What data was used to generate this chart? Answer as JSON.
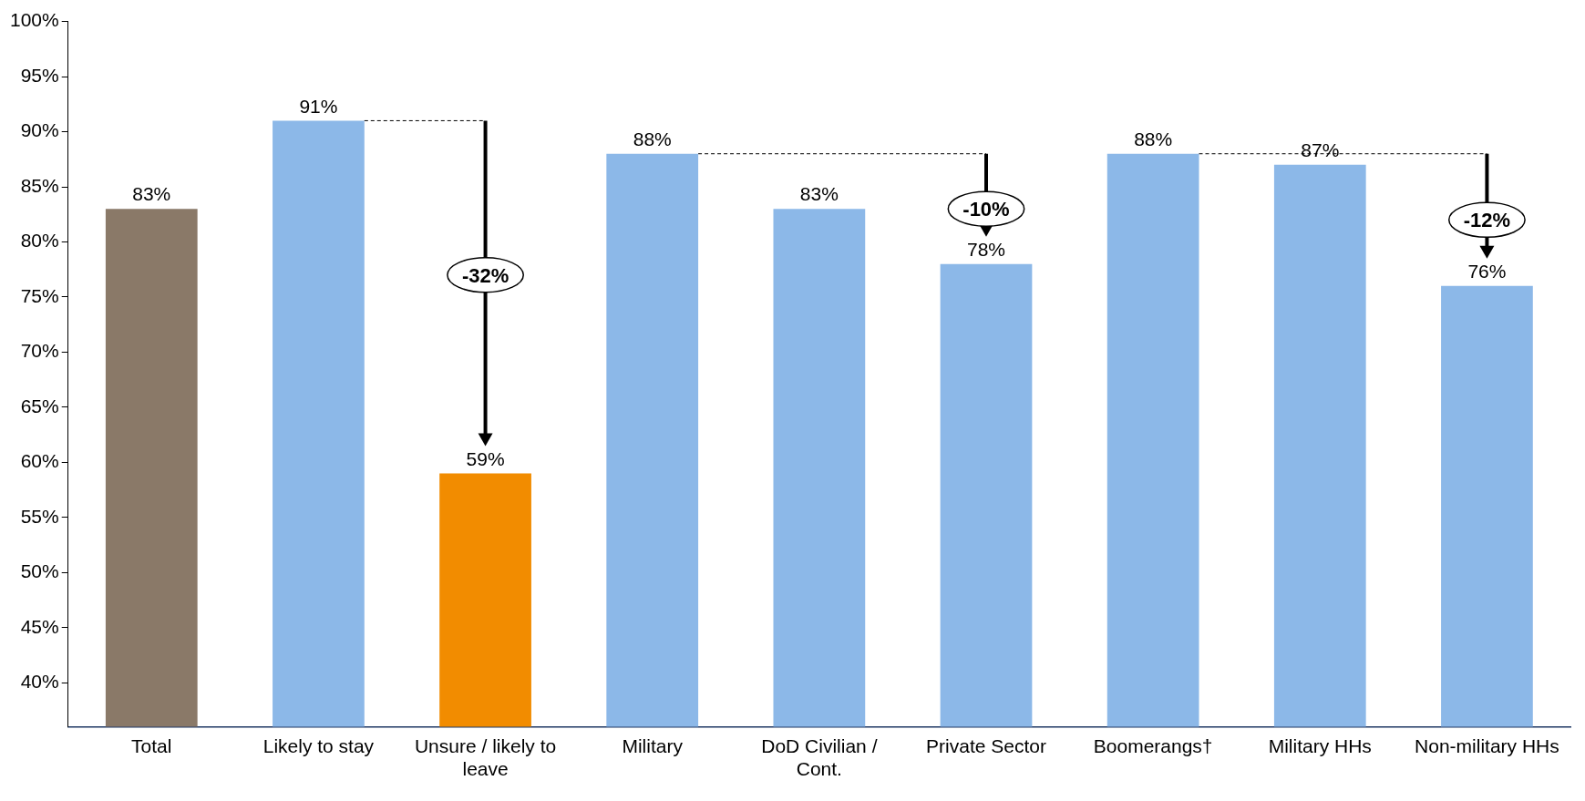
{
  "chart_data": {
    "type": "bar",
    "categories": [
      "Total",
      "Likely to stay",
      "Unsure / likely to leave",
      "Military",
      "DoD Civilian / Cont.",
      "Private Sector",
      "Boomerangs†",
      "Military HHs",
      "Non-military HHs"
    ],
    "values": [
      83,
      91,
      59,
      88,
      83,
      78,
      88,
      87,
      76
    ],
    "colors": [
      "#8a7968",
      "#8cb8e8",
      "#f28c00",
      "#8cb8e8",
      "#8cb8e8",
      "#8cb8e8",
      "#8cb8e8",
      "#8cb8e8",
      "#8cb8e8"
    ],
    "value_labels": [
      "83%",
      "91%",
      "59%",
      "88%",
      "83%",
      "78%",
      "88%",
      "87%",
      "76%"
    ],
    "ylim": [
      36,
      100
    ],
    "yticks": [
      {
        "value": 40,
        "label": "40%"
      },
      {
        "value": 45,
        "label": "45%"
      },
      {
        "value": 50,
        "label": "50%"
      },
      {
        "value": 55,
        "label": "55%"
      },
      {
        "value": 60,
        "label": "60%"
      },
      {
        "value": 65,
        "label": "65%"
      },
      {
        "value": 70,
        "label": "70%"
      },
      {
        "value": 75,
        "label": "75%"
      },
      {
        "value": 80,
        "label": "80%"
      },
      {
        "value": 85,
        "label": "85%"
      },
      {
        "value": 90,
        "label": "90%"
      },
      {
        "value": 95,
        "label": "95%"
      },
      {
        "value": 100,
        "label": "100%"
      }
    ],
    "annotations": [
      "-32%",
      "-10%",
      "-12%"
    ],
    "grid": false,
    "legend": false
  }
}
